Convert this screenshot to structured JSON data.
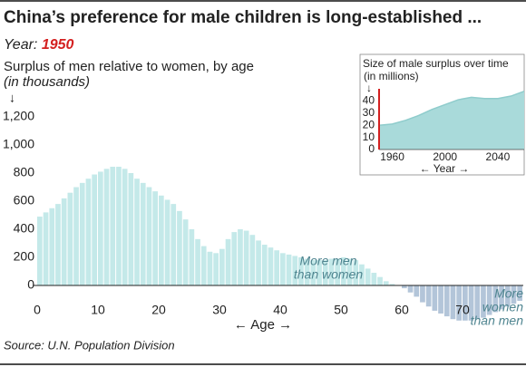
{
  "chart_data": [
    {
      "type": "bar",
      "title": "China’s preference for male children is long-established ...",
      "year_label": "Year:",
      "year": 1950,
      "ylabel": "Surplus of men relative to women, by age",
      "ylabel_unit": "(in thousands)",
      "y_arrow": "↓",
      "xlabel": "← Age →",
      "source": "Source: U.N. Population Division",
      "x": [
        0,
        1,
        2,
        3,
        4,
        5,
        6,
        7,
        8,
        9,
        10,
        11,
        12,
        13,
        14,
        15,
        16,
        17,
        18,
        19,
        20,
        21,
        22,
        23,
        24,
        25,
        26,
        27,
        28,
        29,
        30,
        31,
        32,
        33,
        34,
        35,
        36,
        37,
        38,
        39,
        40,
        41,
        42,
        43,
        44,
        45,
        46,
        47,
        48,
        49,
        50,
        51,
        52,
        53,
        54,
        55,
        56,
        57,
        58,
        59,
        60,
        61,
        62,
        63,
        64,
        65,
        66,
        67,
        68,
        69,
        70,
        71,
        72,
        73,
        74,
        75,
        76,
        77,
        78,
        79
      ],
      "values": [
        490,
        520,
        550,
        580,
        620,
        660,
        700,
        730,
        760,
        790,
        810,
        830,
        845,
        845,
        830,
        800,
        760,
        730,
        700,
        670,
        640,
        610,
        580,
        530,
        470,
        400,
        330,
        280,
        240,
        230,
        260,
        330,
        380,
        400,
        390,
        360,
        320,
        290,
        270,
        250,
        230,
        220,
        210,
        200,
        190,
        180,
        180,
        180,
        190,
        190,
        200,
        190,
        180,
        150,
        120,
        90,
        60,
        30,
        10,
        0,
        -20,
        -50,
        -80,
        -120,
        -150,
        -180,
        -200,
        -220,
        -240,
        -250,
        -250,
        -250,
        -240,
        -230,
        -210,
        -190,
        -170,
        -150,
        -130,
        -110
      ],
      "colors": {
        "positive": "#c4e9e9",
        "negative": "#b3c5d9",
        "annotation": "#4f8590",
        "year": "#d42020"
      },
      "xlim": [
        0,
        80
      ],
      "xticks": [
        0,
        10,
        20,
        30,
        40,
        50,
        60,
        70
      ],
      "ylim": [
        -260,
        1300
      ],
      "yticks": [
        0,
        200,
        400,
        600,
        800,
        {
          "value": 1000,
          "label": "1,000"
        },
        {
          "value": 1200,
          "label": "1,200"
        }
      ],
      "annotations": [
        {
          "lines": [
            "More men",
            "than women"
          ]
        },
        {
          "lines": [
            "More",
            "women",
            "than men"
          ]
        }
      ]
    },
    {
      "type": "area",
      "title": "Size of male surplus over time",
      "ylabel_unit": "(in millions)",
      "y_arrow": "↓",
      "xlabel": "← Year →",
      "x": [
        1950,
        1960,
        1970,
        1980,
        1990,
        2000,
        2010,
        2020,
        2030,
        2040,
        2050,
        2060
      ],
      "values": [
        20,
        21,
        24,
        28,
        33,
        37,
        41,
        43,
        42,
        42,
        44,
        48
      ],
      "color": "#a9dada",
      "line_color": "#8fcccc",
      "marker_color": "#d42020",
      "marker_x": 1950,
      "xlim": [
        1950,
        2060
      ],
      "xticks": [
        1960,
        2000,
        2040
      ],
      "ylim": [
        0,
        50
      ],
      "yticks": [
        0,
        10,
        20,
        30,
        40
      ]
    }
  ]
}
